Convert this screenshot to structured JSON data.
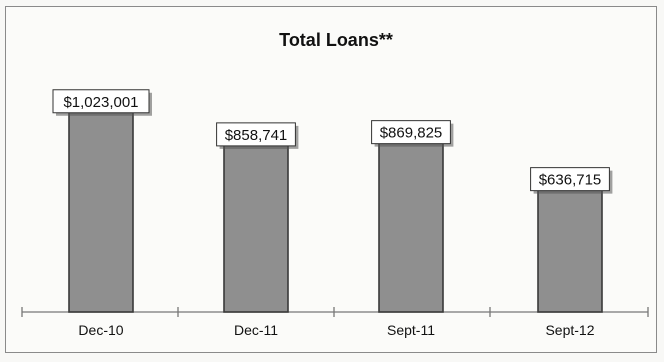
{
  "chart_data": {
    "type": "bar",
    "title": "Total Loans**",
    "xlabel": "",
    "ylabel": "",
    "categories": [
      "Dec-10",
      "Dec-11",
      "Sept-11",
      "Sept-12"
    ],
    "values": [
      1023001,
      858741,
      869825,
      636715
    ],
    "data_labels": [
      "$1,023,001",
      "$858,741",
      "$869,825",
      "$636,715"
    ],
    "ylim": [
      0,
      1250000
    ],
    "grid": false,
    "legend": "none",
    "colors": {
      "bar_fill": "#8f8f8f",
      "bar_stroke": "#3a3a3a",
      "label_box": "#ffffff",
      "axis": "#777777"
    }
  }
}
